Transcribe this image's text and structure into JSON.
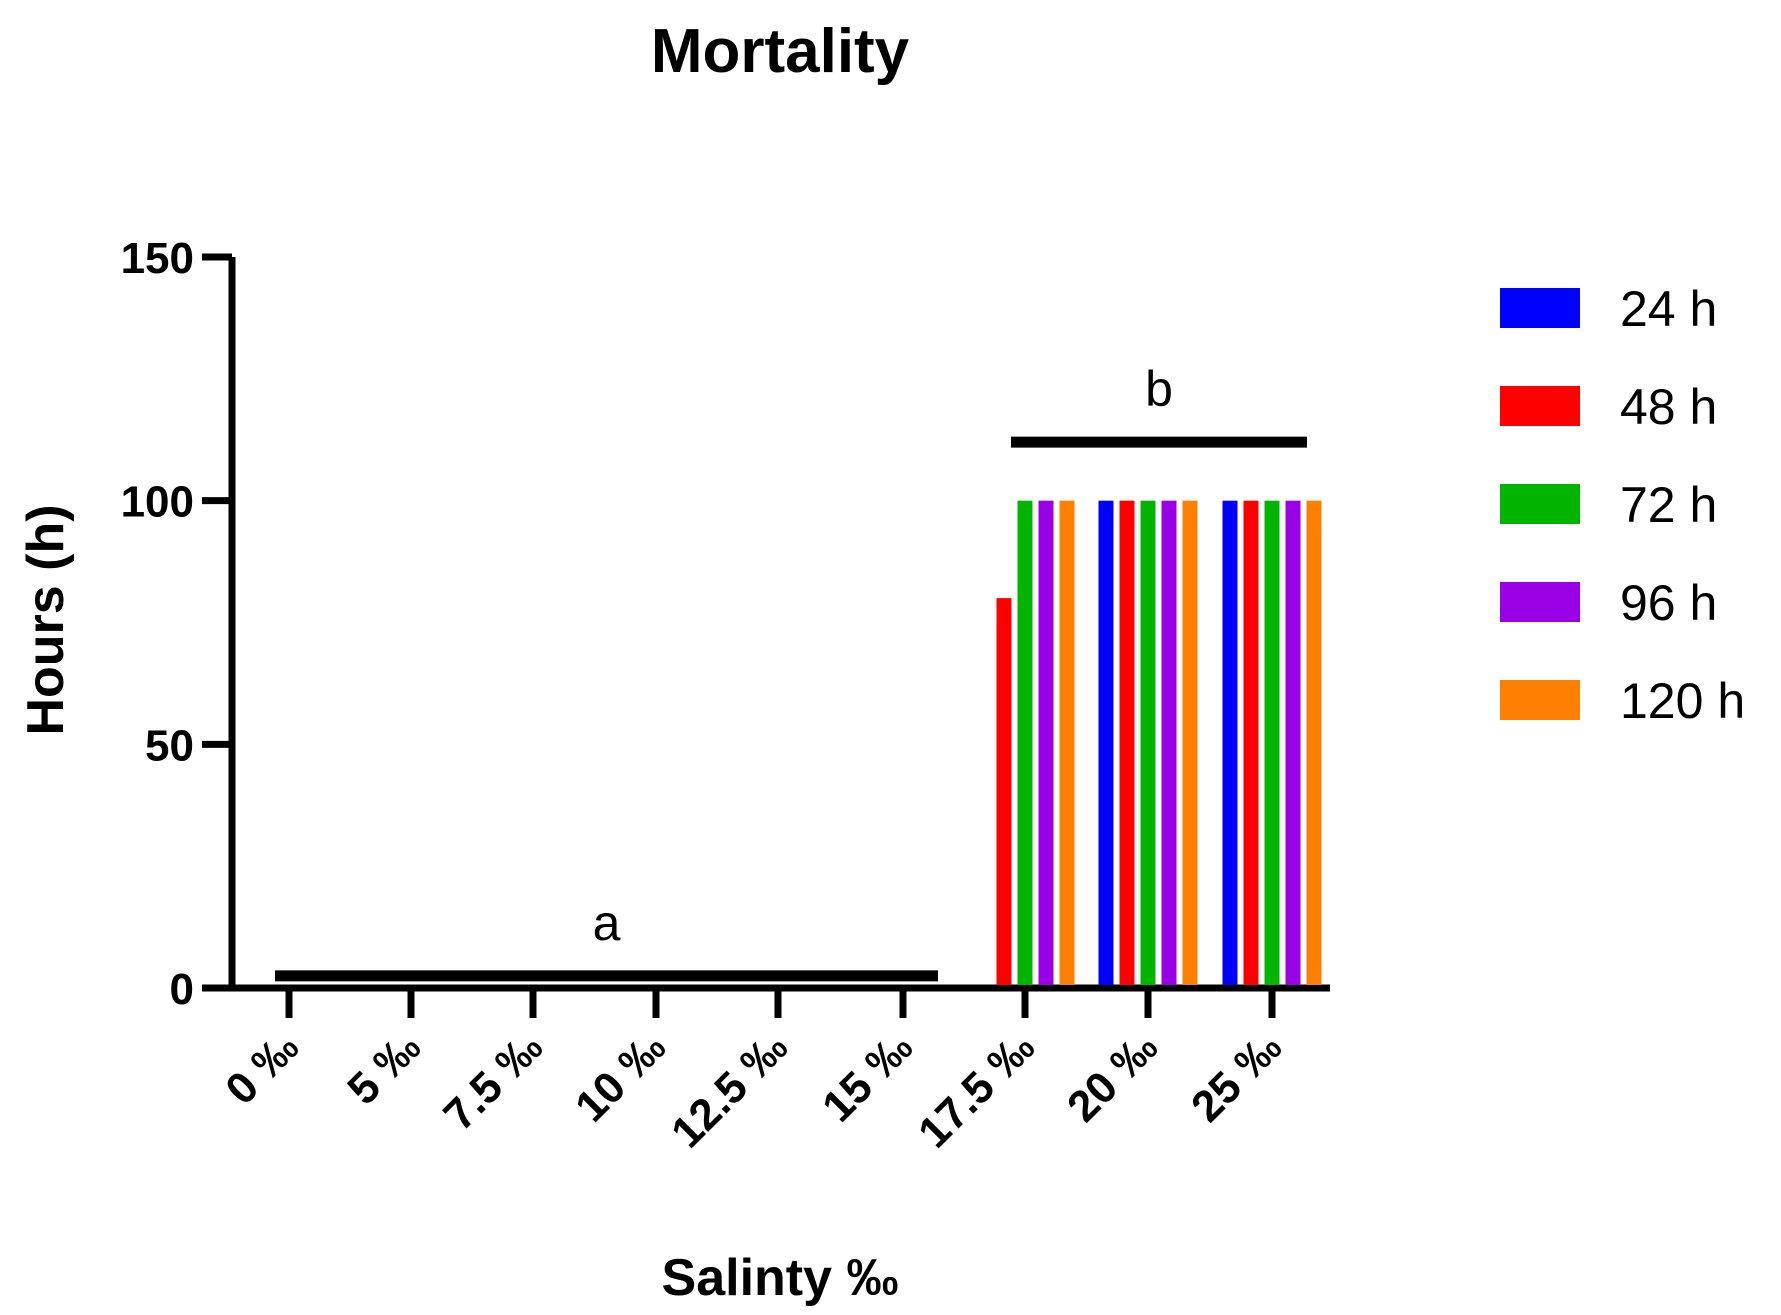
{
  "chart_data": {
    "type": "bar",
    "title": "Mortality",
    "xlabel": "Salinty ‰",
    "ylabel": "Hours (h)",
    "ylim": [
      0,
      150
    ],
    "yticks": [
      "0",
      "50",
      "100",
      "150"
    ],
    "categories": [
      "0 ‰",
      "5 ‰",
      "7.5 ‰",
      "10 ‰",
      "12.5 ‰",
      "15 ‰",
      "17.5 ‰",
      "20 ‰",
      "25 ‰"
    ],
    "series": [
      {
        "name": "24 h",
        "color": "#0000ff",
        "values": [
          0,
          0,
          0,
          0,
          0,
          0,
          0,
          100,
          100
        ]
      },
      {
        "name": "48 h",
        "color": "#ff0000",
        "values": [
          0,
          0,
          0,
          0,
          0,
          0,
          80,
          100,
          100
        ]
      },
      {
        "name": "72 h",
        "color": "#00b400",
        "values": [
          0,
          0,
          0,
          0,
          0,
          0,
          100,
          100,
          100
        ]
      },
      {
        "name": "96 h",
        "color": "#9900e6",
        "values": [
          0,
          0,
          0,
          0,
          0,
          0,
          100,
          100,
          100
        ]
      },
      {
        "name": "120 h",
        "color": "#ff8000",
        "values": [
          0,
          0,
          0,
          0,
          0,
          0,
          100,
          100,
          100
        ]
      }
    ],
    "legend_position": "right",
    "grid": false,
    "annotations": [
      {
        "text": "a",
        "from": 0,
        "to": 5,
        "y": 2.5
      },
      {
        "text": "b",
        "from": 6,
        "to": 8,
        "y": 112
      }
    ]
  }
}
